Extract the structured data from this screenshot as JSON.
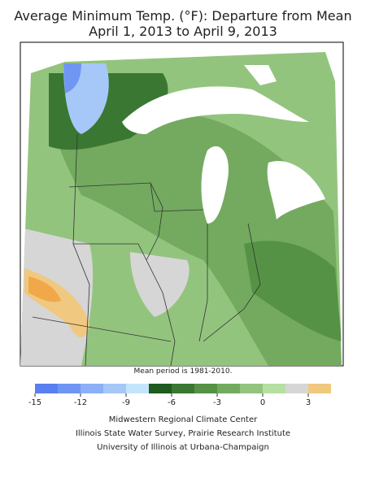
{
  "header": {
    "title": "Average Minimum Temp. (°F): Departure from Mean",
    "subtitle": "April 1, 2013 to April 9, 2013"
  },
  "note": "Mean period is 1981-2010.",
  "legend": {
    "bins": [
      -15,
      -13.5,
      -12,
      -10.5,
      -9,
      -7.5,
      -6,
      -4.5,
      -3,
      -1.5,
      0,
      1.5,
      3,
      4.5
    ],
    "colors": [
      "#5a7ff0",
      "#7096f4",
      "#8cb0f6",
      "#a6c8f8",
      "#c4e4fb",
      "#1f5a1f",
      "#3a7732",
      "#569246",
      "#73aa5f",
      "#93c47e",
      "#b6e0a2",
      "#d6d6d6",
      "#f0c880",
      "#f0a848"
    ],
    "ticks": [
      -15,
      -12,
      -9,
      -6,
      -3,
      0,
      3
    ]
  },
  "credits": [
    "Midwestern Regional Climate Center",
    "Illinois State Water Survey, Prairie Research Institute",
    "University of Illinois at Urbana-Champaign"
  ]
}
